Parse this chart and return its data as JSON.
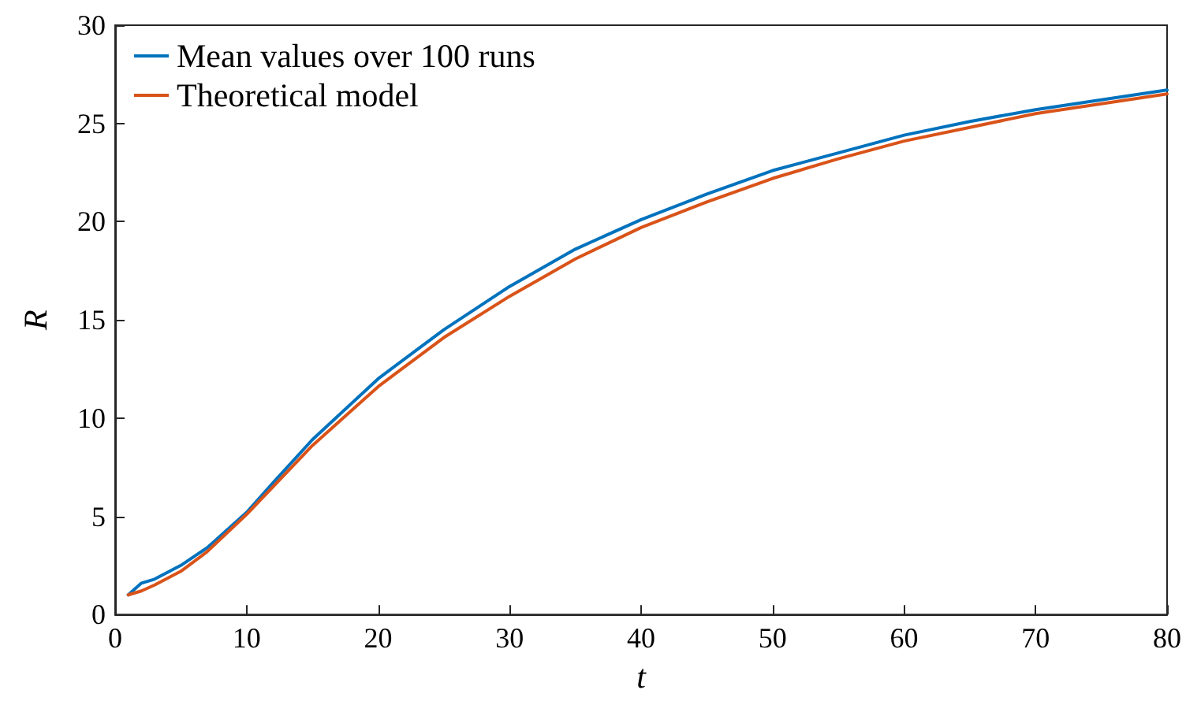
{
  "chart_data": {
    "type": "line",
    "xlabel": "t",
    "ylabel": "R",
    "x": [
      1,
      2,
      3,
      5,
      7,
      10,
      12,
      15,
      20,
      25,
      30,
      35,
      40,
      45,
      50,
      55,
      60,
      65,
      70,
      75,
      80
    ],
    "series": [
      {
        "name": "Mean values over 100 runs",
        "color": "#0072bd",
        "values": [
          1.0,
          1.6,
          1.8,
          2.5,
          3.4,
          5.2,
          6.7,
          8.9,
          12.0,
          14.5,
          16.7,
          18.6,
          20.1,
          21.4,
          22.6,
          23.5,
          24.4,
          25.1,
          25.7,
          26.2,
          26.7
        ]
      },
      {
        "name": "Theoretical model",
        "color": "#d95319",
        "values": [
          1.0,
          1.2,
          1.5,
          2.2,
          3.2,
          5.1,
          6.5,
          8.6,
          11.6,
          14.1,
          16.2,
          18.1,
          19.7,
          21.0,
          22.2,
          23.2,
          24.1,
          24.8,
          25.5,
          26.0,
          26.5
        ]
      }
    ],
    "xlim": [
      0,
      80
    ],
    "xticks": [
      0,
      10,
      20,
      30,
      40,
      50,
      60,
      70,
      80
    ],
    "ylim": [
      0,
      30
    ],
    "yticks": [
      0,
      5,
      10,
      15,
      20,
      25,
      30
    ],
    "grid": false,
    "legend": "top left",
    "marker": "none",
    "line_style": "solid"
  }
}
